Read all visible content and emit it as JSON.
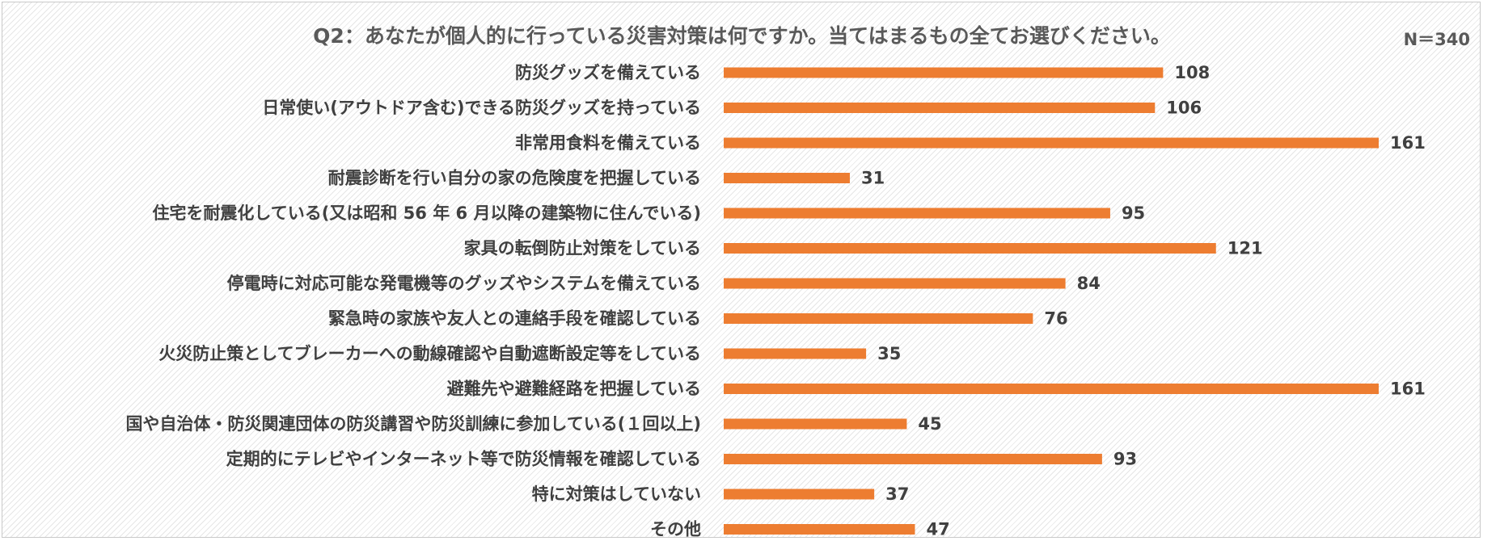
{
  "chart_data": {
    "type": "bar",
    "orientation": "horizontal",
    "title": "Q2：あなたが個人的に行っている災害対策は何ですか。当てはまるもの全てお選びください。",
    "note": "N＝340",
    "categories": [
      "防災グッズを備えている",
      "日常使い(アウトドア含む)できる防災グッズを持っている",
      "非常用食料を備えている",
      "耐震診断を行い自分の家の危険度を把握している",
      "住宅を耐震化している(又は昭和 56 年 6 月以降の建築物に住んでいる)",
      "家具の転倒防止対策をしている",
      "停電時に対応可能な発電機等のグッズやシステムを備えている",
      "緊急時の家族や友人との連絡手段を確認している",
      "火災防止策としてブレーカーへの動線確認や自動遮断設定等をしている",
      "避難先や避難経路を把握している",
      "国や自治体・防災関連団体の防災講習や防災訓練に参加している(１回以上)",
      "定期的にテレビやインターネット等で防災情報を確認している",
      "特に対策はしていない",
      "その他"
    ],
    "values": [
      108,
      106,
      161,
      31,
      95,
      121,
      84,
      76,
      35,
      161,
      45,
      93,
      37,
      47
    ],
    "xlim": [
      0,
      161
    ],
    "bar_color": "#ED7D31",
    "xlabel": "",
    "ylabel": "",
    "grid": false,
    "legend": "none"
  }
}
